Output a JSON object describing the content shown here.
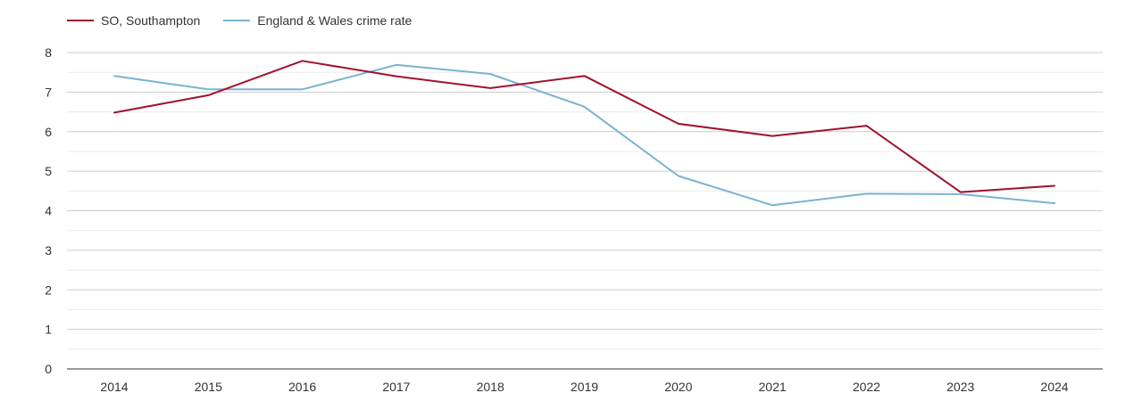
{
  "chart_data": {
    "type": "line",
    "title": "",
    "xlabel": "",
    "ylabel": "",
    "categories": [
      "2014",
      "2015",
      "2016",
      "2017",
      "2018",
      "2019",
      "2020",
      "2021",
      "2022",
      "2023",
      "2024"
    ],
    "ylim": [
      0,
      8
    ],
    "yticks": [
      0,
      1,
      2,
      3,
      4,
      5,
      6,
      7,
      8
    ],
    "grid": true,
    "legend_position": "top-left",
    "series": [
      {
        "name": "SO, Southampton",
        "color": "#a0122e",
        "values": [
          6.48,
          6.92,
          7.79,
          7.4,
          7.1,
          7.41,
          6.2,
          5.89,
          6.15,
          4.47,
          4.63
        ]
      },
      {
        "name": "England & Wales crime rate",
        "color": "#7ab3d0",
        "values": [
          7.41,
          7.07,
          7.07,
          7.69,
          7.46,
          6.63,
          4.88,
          4.14,
          4.43,
          4.42,
          4.19
        ]
      }
    ]
  }
}
